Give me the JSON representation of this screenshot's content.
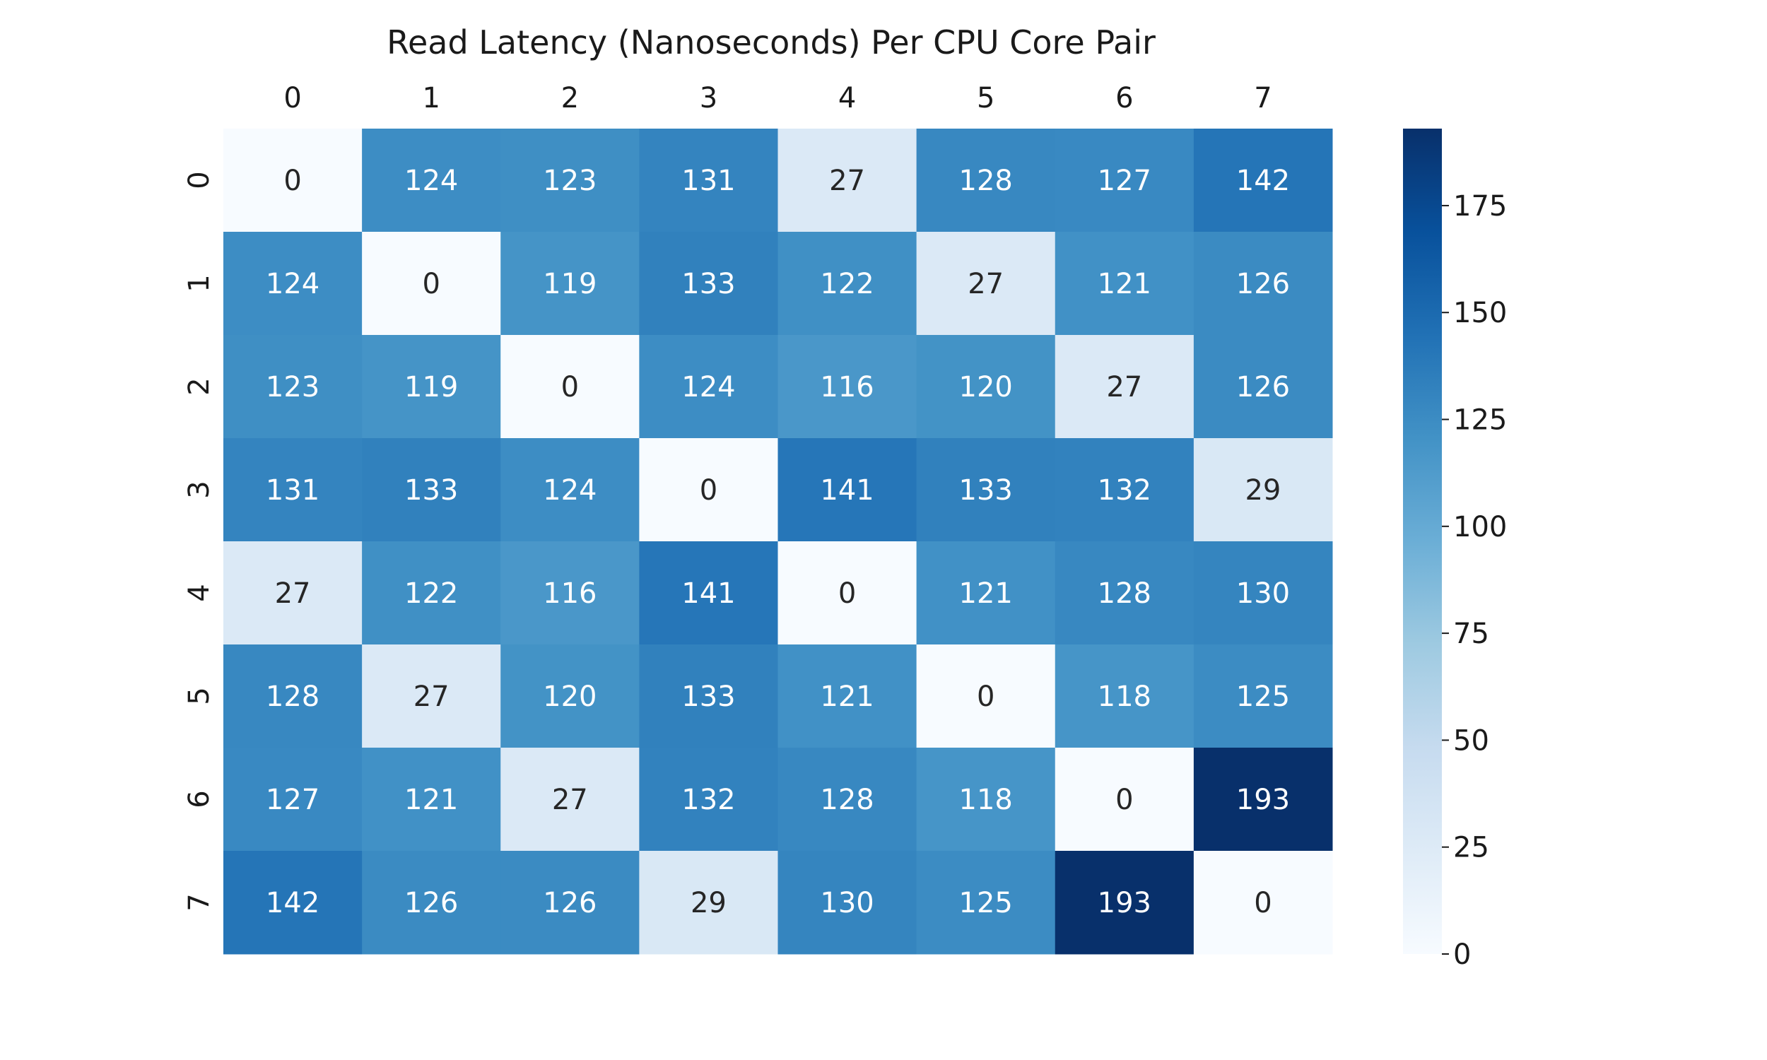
{
  "chart_data": {
    "type": "heatmap",
    "title": "Read Latency (Nanoseconds) Per CPU Core Pair",
    "xlabel": "",
    "ylabel": "",
    "x_labels": [
      "0",
      "1",
      "2",
      "3",
      "4",
      "5",
      "6",
      "7"
    ],
    "y_labels": [
      "0",
      "1",
      "2",
      "3",
      "4",
      "5",
      "6",
      "7"
    ],
    "values": [
      [
        0,
        124,
        123,
        131,
        27,
        128,
        127,
        142
      ],
      [
        124,
        0,
        119,
        133,
        122,
        27,
        121,
        126
      ],
      [
        123,
        119,
        0,
        124,
        116,
        120,
        27,
        126
      ],
      [
        131,
        133,
        124,
        0,
        141,
        133,
        132,
        29
      ],
      [
        27,
        122,
        116,
        141,
        0,
        121,
        128,
        130
      ],
      [
        128,
        27,
        120,
        133,
        121,
        0,
        118,
        125
      ],
      [
        127,
        121,
        27,
        132,
        128,
        118,
        0,
        193
      ],
      [
        142,
        126,
        126,
        29,
        130,
        125,
        193,
        0
      ]
    ],
    "x_axis_position": "top",
    "colormap": "Blues",
    "colormap_stops": [
      "#f7fbff",
      "#deebf7",
      "#c6dbef",
      "#9ecae1",
      "#6baed6",
      "#4292c6",
      "#2171b5",
      "#08519c",
      "#08306b"
    ],
    "vmin": 0,
    "vmax": 193,
    "colorbar": {
      "ticks": [
        0,
        25,
        50,
        75,
        100,
        125,
        150,
        175
      ],
      "position": "right"
    },
    "annotations": true,
    "grid": false
  }
}
